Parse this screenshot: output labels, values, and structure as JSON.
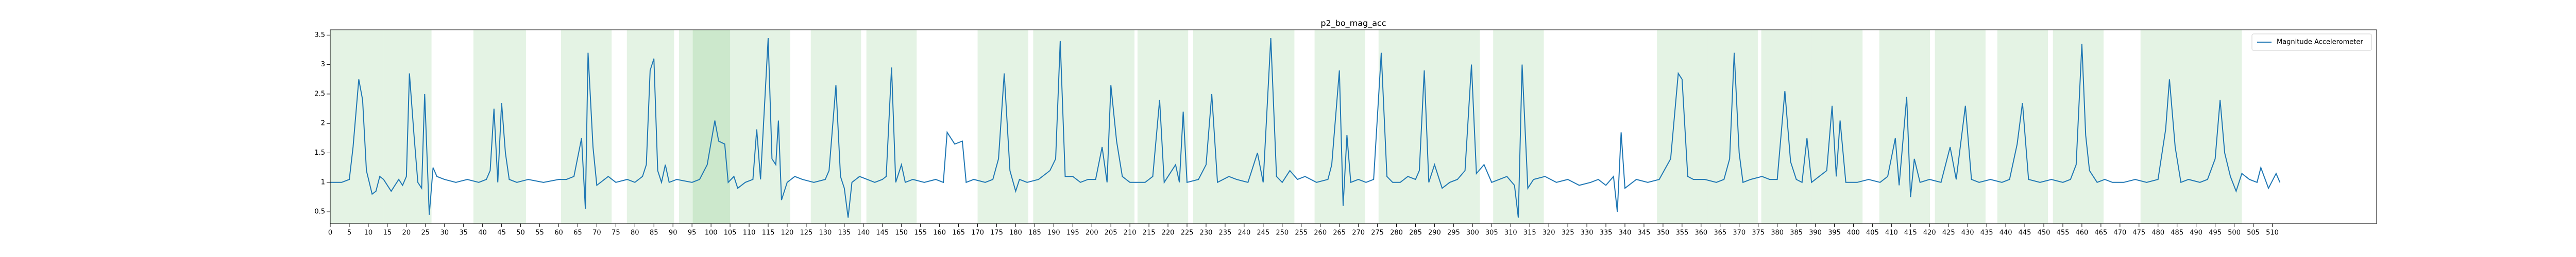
{
  "chart_data": {
    "type": "line",
    "title": "p2_bo_mag_acc",
    "x": [
      0,
      3,
      5,
      6,
      7.5,
      8.5,
      9.5,
      11,
      12,
      13,
      14,
      16,
      17,
      18,
      19,
      20,
      20.8,
      22,
      23,
      24,
      24.8,
      26,
      27,
      28,
      30,
      33,
      36,
      39,
      41,
      42,
      43,
      44,
      45,
      46,
      47,
      49,
      52,
      56,
      60,
      62,
      64,
      66,
      67,
      67.7,
      69,
      70,
      72,
      73,
      75,
      78,
      80,
      82,
      83,
      84,
      85,
      86,
      87,
      88,
      89,
      91,
      95,
      97,
      99,
      101,
      102,
      103.6,
      104.5,
      106,
      107,
      109,
      111,
      112,
      113,
      115,
      116,
      117,
      117.7,
      118.5,
      120,
      122,
      124,
      127,
      130,
      131,
      132.8,
      134,
      135,
      136,
      137,
      139,
      141,
      143,
      145,
      146,
      147.4,
      148.5,
      150,
      151,
      153,
      156,
      159,
      161,
      162,
      164,
      166,
      167,
      169,
      172,
      174,
      175.5,
      177,
      178.5,
      180,
      181,
      183,
      186,
      189,
      190.5,
      191.7,
      193,
      195,
      197,
      199,
      201,
      202.7,
      204,
      205,
      206.5,
      208,
      210,
      212,
      214,
      216,
      217.8,
      219,
      222,
      223,
      224,
      225,
      228,
      230,
      231.5,
      233,
      236,
      238,
      241,
      243.5,
      245,
      247,
      248.5,
      250,
      252,
      254,
      256,
      259,
      262,
      263,
      265,
      266,
      267,
      268,
      270,
      272,
      274,
      276,
      277.5,
      279,
      281,
      283,
      285,
      286,
      287.3,
      288.5,
      290,
      292,
      294,
      296,
      298,
      299.7,
      301,
      303,
      305,
      307,
      309,
      311,
      312,
      313,
      314.5,
      316,
      319,
      322,
      325,
      328,
      331,
      333,
      335,
      337,
      338,
      339,
      340,
      343,
      346,
      349,
      352,
      354,
      355,
      356.5,
      358,
      361,
      364,
      366,
      367.5,
      368.7,
      370,
      371,
      373,
      376,
      378,
      380,
      382,
      383.5,
      385,
      386.5,
      387.8,
      389,
      391,
      393,
      394.4,
      395.5,
      396.5,
      398,
      401,
      404,
      407,
      409,
      411,
      412,
      414,
      415,
      416,
      417.5,
      420,
      423,
      425.4,
      427,
      429.4,
      431,
      433,
      436,
      439,
      441,
      443,
      444.4,
      446,
      449,
      452,
      455,
      457,
      458.5,
      460,
      461,
      462,
      464,
      466,
      468,
      471,
      474,
      477,
      480,
      482,
      483,
      484.5,
      486,
      488,
      491,
      493,
      495,
      496.3,
      497.5,
      499,
      500.5,
      502,
      504,
      506,
      507,
      509,
      511,
      512
    ],
    "series": [
      {
        "name": "Magnitude Accelerometer",
        "color": "#1f77b4",
        "values": [
          1.0,
          1.0,
          1.05,
          1.6,
          2.75,
          2.4,
          1.2,
          0.8,
          0.85,
          1.1,
          1.05,
          0.85,
          0.95,
          1.05,
          0.95,
          1.1,
          2.85,
          1.8,
          1.0,
          0.9,
          2.5,
          0.45,
          1.25,
          1.1,
          1.05,
          1.0,
          1.05,
          1.0,
          1.05,
          1.2,
          2.25,
          1.0,
          2.35,
          1.5,
          1.05,
          1.0,
          1.05,
          1.0,
          1.05,
          1.05,
          1.1,
          1.75,
          0.55,
          3.2,
          1.6,
          0.95,
          1.05,
          1.1,
          1.0,
          1.05,
          1.0,
          1.1,
          1.3,
          2.9,
          3.1,
          1.2,
          1.0,
          1.3,
          1.0,
          1.05,
          1.0,
          1.05,
          1.3,
          2.05,
          1.7,
          1.65,
          1.0,
          1.1,
          0.9,
          1.0,
          1.05,
          1.9,
          1.05,
          3.45,
          1.4,
          1.3,
          2.05,
          0.7,
          1.0,
          1.1,
          1.05,
          1.0,
          1.05,
          1.2,
          2.65,
          1.1,
          0.9,
          0.4,
          1.0,
          1.1,
          1.05,
          1.0,
          1.05,
          1.1,
          2.95,
          1.0,
          1.3,
          1.0,
          1.05,
          1.0,
          1.05,
          1.0,
          1.85,
          1.65,
          1.7,
          1.0,
          1.05,
          1.0,
          1.05,
          1.4,
          2.85,
          1.2,
          0.85,
          1.05,
          1.0,
          1.05,
          1.2,
          1.4,
          3.4,
          1.1,
          1.1,
          1.0,
          1.05,
          1.05,
          1.6,
          1.0,
          2.65,
          1.7,
          1.1,
          1.0,
          1.0,
          1.0,
          1.1,
          2.4,
          1.0,
          1.3,
          1.0,
          2.2,
          1.0,
          1.05,
          1.3,
          2.5,
          1.0,
          1.1,
          1.05,
          1.0,
          1.5,
          1.0,
          3.45,
          1.1,
          1.0,
          1.2,
          1.05,
          1.1,
          1.0,
          1.05,
          1.3,
          2.9,
          0.6,
          1.8,
          1.0,
          1.05,
          1.0,
          1.05,
          3.2,
          1.1,
          1.0,
          1.0,
          1.1,
          1.05,
          1.2,
          2.9,
          1.0,
          1.3,
          0.9,
          1.0,
          1.05,
          1.2,
          3.0,
          1.15,
          1.3,
          1.0,
          1.05,
          1.1,
          0.95,
          0.4,
          3.0,
          0.9,
          1.05,
          1.1,
          1.0,
          1.05,
          0.95,
          1.0,
          1.05,
          0.95,
          1.1,
          0.5,
          1.85,
          0.9,
          1.05,
          1.0,
          1.05,
          1.4,
          2.85,
          2.75,
          1.1,
          1.05,
          1.05,
          1.0,
          1.05,
          1.4,
          3.2,
          1.5,
          1.0,
          1.05,
          1.1,
          1.05,
          1.05,
          2.55,
          1.35,
          1.05,
          1.0,
          1.75,
          1.0,
          1.1,
          1.2,
          2.3,
          1.1,
          2.05,
          1.0,
          1.0,
          1.05,
          1.0,
          1.1,
          1.75,
          0.95,
          2.45,
          0.75,
          1.4,
          1.0,
          1.05,
          1.0,
          1.6,
          1.05,
          2.3,
          1.05,
          1.0,
          1.05,
          1.0,
          1.05,
          1.65,
          2.35,
          1.05,
          1.0,
          1.05,
          1.0,
          1.05,
          1.3,
          3.35,
          1.8,
          1.2,
          1.0,
          1.05,
          1.0,
          1.0,
          1.05,
          1.0,
          1.05,
          1.9,
          2.75,
          1.6,
          1.0,
          1.05,
          1.0,
          1.05,
          1.4,
          2.4,
          1.5,
          1.1,
          0.85,
          1.15,
          1.05,
          1.0,
          1.25,
          0.9,
          1.15,
          1.0
        ]
      }
    ],
    "spans": [
      [
        0,
        14
      ],
      [
        14,
        26.6
      ],
      [
        37.6,
        51.4
      ],
      [
        60.6,
        73.9
      ],
      [
        77.9,
        90.3
      ],
      [
        91.6,
        105
      ],
      [
        95.2,
        108.5
      ],
      [
        108.5,
        120.8
      ],
      [
        126.2,
        139.4
      ],
      [
        140.8,
        154
      ],
      [
        170,
        183.3
      ],
      [
        184.6,
        197.9
      ],
      [
        197.9,
        211.2
      ],
      [
        212,
        225.3
      ],
      [
        226.6,
        239.9
      ],
      [
        239.9,
        253.2
      ],
      [
        258.5,
        271.8
      ],
      [
        275.3,
        288.6
      ],
      [
        288.6,
        301.9
      ],
      [
        305.4,
        318.7
      ],
      [
        348.4,
        361.7
      ],
      [
        361.7,
        374.9
      ],
      [
        375.8,
        389.1
      ],
      [
        389.1,
        402.4
      ],
      [
        406.8,
        420.1
      ],
      [
        421.4,
        434.7
      ],
      [
        437.8,
        451.1
      ],
      [
        452.4,
        465.7
      ],
      [
        475.4,
        488.7
      ],
      [
        488.7,
        502
      ]
    ],
    "span_color": "#2ca02c",
    "xlim": [
      0,
      537.4
    ],
    "ylim": [
      0.3,
      3.59
    ],
    "xticks": [
      0,
      5,
      10,
      15,
      20,
      25,
      30,
      35,
      40,
      45,
      50,
      55,
      60,
      65,
      70,
      75,
      80,
      85,
      90,
      95,
      100,
      105,
      110,
      115,
      120,
      125,
      130,
      135,
      140,
      145,
      150,
      155,
      160,
      165,
      170,
      175,
      180,
      185,
      190,
      195,
      200,
      205,
      210,
      215,
      220,
      225,
      230,
      235,
      240,
      245,
      250,
      255,
      260,
      265,
      270,
      275,
      280,
      285,
      290,
      295,
      300,
      305,
      310,
      315,
      320,
      325,
      330,
      335,
      340,
      345,
      350,
      355,
      360,
      365,
      370,
      375,
      380,
      385,
      390,
      395,
      400,
      405,
      410,
      415,
      420,
      425,
      430,
      435,
      440,
      445,
      450,
      455,
      460,
      465,
      470,
      475,
      480,
      485,
      490,
      495,
      500,
      505,
      510
    ],
    "yticks": [
      0.5,
      1.0,
      1.5,
      2.0,
      2.5,
      3.0,
      3.5
    ],
    "legend": "upper right"
  }
}
